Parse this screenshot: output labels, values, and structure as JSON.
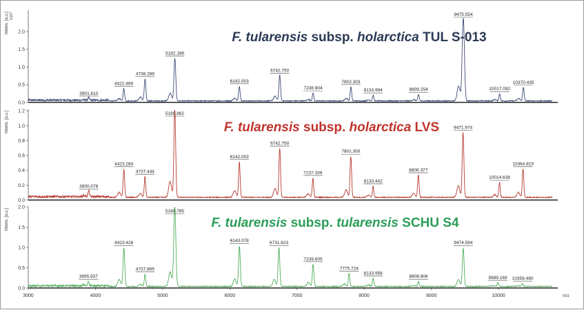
{
  "chart_data": [
    {
      "type": "line",
      "title": {
        "parts": [
          "F. tularensis",
          " subsp. ",
          "holarctica",
          " TUL S-013"
        ],
        "italic": [
          true,
          false,
          true,
          false
        ]
      },
      "title_color": "#2b3a55",
      "line_color": "#3d4a74",
      "ylabel": "Intens. [a.u.]",
      "y_multiplier": "x10⁴",
      "ylim": [
        0,
        2.6
      ],
      "yticks": [
        0.0,
        0.5,
        1.0,
        1.5,
        2.0
      ],
      "ytick_labels": [
        "0.0",
        "0.5",
        "1.0",
        "1.5",
        "2.0"
      ],
      "xlim": [
        3000,
        10800
      ],
      "baseline": 0.03,
      "peaks": [
        {
          "x": 3901.61,
          "label": "3901.610",
          "height": 0.07
        },
        {
          "x": 4422.469,
          "label": "4422.469",
          "height": 0.35
        },
        {
          "x": 4738.289,
          "label": "4738.289",
          "height": 0.62
        },
        {
          "x": 5182.186,
          "label": "5182.186",
          "height": 1.2
        },
        {
          "x": 6142.003,
          "label": "6142.003",
          "height": 0.42
        },
        {
          "x": 6742.75,
          "label": "6742.750",
          "height": 0.72
        },
        {
          "x": 7238.904,
          "label": "7238.904",
          "height": 0.22
        },
        {
          "x": 7802.303,
          "label": "7802.303",
          "height": 0.4
        },
        {
          "x": 8133.994,
          "label": "8133.994",
          "height": 0.16
        },
        {
          "x": 8809.254,
          "label": "8809.254",
          "height": 0.18
        },
        {
          "x": 9475.554,
          "label": "9475.554",
          "height": 2.35
        },
        {
          "x": 10017.092,
          "label": "10017.092",
          "height": 0.2
        },
        {
          "x": 10370.435,
          "label": "10370.435",
          "height": 0.38
        }
      ]
    },
    {
      "type": "line",
      "title": {
        "parts": [
          "F. tularensis",
          " subsp. ",
          "holarctica",
          " LVS"
        ],
        "italic": [
          true,
          false,
          true,
          false
        ]
      },
      "title_color": "#c0332c",
      "line_color": "#b53a32",
      "ylabel": "Intens. [a.u.]",
      "ylim": [
        0,
        1.22
      ],
      "yticks": [
        0.0,
        0.2,
        0.4,
        0.6,
        0.8,
        1.0,
        1.2
      ],
      "ytick_labels": [
        "0.0",
        "0.2",
        "0.4",
        "0.6",
        "0.8",
        "1.0",
        "1.2"
      ],
      "xlim": [
        3000,
        10800
      ],
      "baseline": 0.03,
      "peaks": [
        {
          "x": 3900.078,
          "label": "3900.078",
          "height": 0.08
        },
        {
          "x": 4423.284,
          "label": "4423.284",
          "height": 0.38
        },
        {
          "x": 4737.444,
          "label": "4737.444",
          "height": 0.28
        },
        {
          "x": 5180.862,
          "label": "5180.862",
          "height": 1.18
        },
        {
          "x": 6142.003,
          "label": "6142.003",
          "height": 0.48
        },
        {
          "x": 6742.75,
          "label": "6742.750",
          "height": 0.66
        },
        {
          "x": 7237.339,
          "label": "7237.339",
          "height": 0.26
        },
        {
          "x": 7801.3,
          "label": "7801.300",
          "height": 0.55
        },
        {
          "x": 8133.442,
          "label": "8133.442",
          "height": 0.15
        },
        {
          "x": 8806.377,
          "label": "8806.377",
          "height": 0.3
        },
        {
          "x": 9471.974,
          "label": "9471.974",
          "height": 0.87
        },
        {
          "x": 10014.638,
          "label": "10014.638",
          "height": 0.2
        },
        {
          "x": 10364.819,
          "label": "10364.819",
          "height": 0.38
        }
      ]
    },
    {
      "type": "line",
      "title": {
        "parts": [
          "F. tularensis",
          " subsp. ",
          "tularensis",
          " SCHU S4"
        ],
        "italic": [
          true,
          false,
          true,
          false
        ]
      },
      "title_color": "#2a9e57",
      "line_color": "#4fae5a",
      "ylabel": "Intens. [a.u.]",
      "ylim": [
        0,
        2.0
      ],
      "yticks": [
        0.0,
        0.5,
        1.0,
        1.5,
        2.0
      ],
      "ytick_labels": [
        "0.0",
        "0.5",
        "1.0",
        "1.5",
        "2.0"
      ],
      "xlim": [
        3000,
        10800
      ],
      "xlabel": "m/z",
      "xticks": [
        3000,
        4000,
        5000,
        6000,
        7000,
        8000,
        9000,
        10000
      ],
      "xtick_labels": [
        "3000",
        "4000",
        "5000",
        "6000",
        "7000",
        "8000",
        "9000",
        "10000"
      ],
      "baseline": 0.03,
      "peaks": [
        {
          "x": 3895.937,
          "label": "3895.937",
          "height": 0.12
        },
        {
          "x": 4423.426,
          "label": "4423.426",
          "height": 0.95
        },
        {
          "x": 4737.869,
          "label": "4737.869",
          "height": 0.3
        },
        {
          "x": 5180.785,
          "label": "5180.785",
          "height": 1.97
        },
        {
          "x": 6143.078,
          "label": "6143.078",
          "height": 1.0
        },
        {
          "x": 6731.623,
          "label": "6731.623",
          "height": 0.95
        },
        {
          "x": 7239.605,
          "label": "7239.605",
          "height": 0.55
        },
        {
          "x": 7775.724,
          "label": "7775.724",
          "height": 0.32
        },
        {
          "x": 8133.958,
          "label": "8133.958",
          "height": 0.2
        },
        {
          "x": 8808.806,
          "label": "8808.806",
          "height": 0.12
        },
        {
          "x": 9474.594,
          "label": "9474.594",
          "height": 0.95
        },
        {
          "x": 9989.169,
          "label": "9989.169",
          "height": 0.09
        },
        {
          "x": 10359.49,
          "label": "10359.490",
          "height": 0.07
        }
      ]
    }
  ]
}
